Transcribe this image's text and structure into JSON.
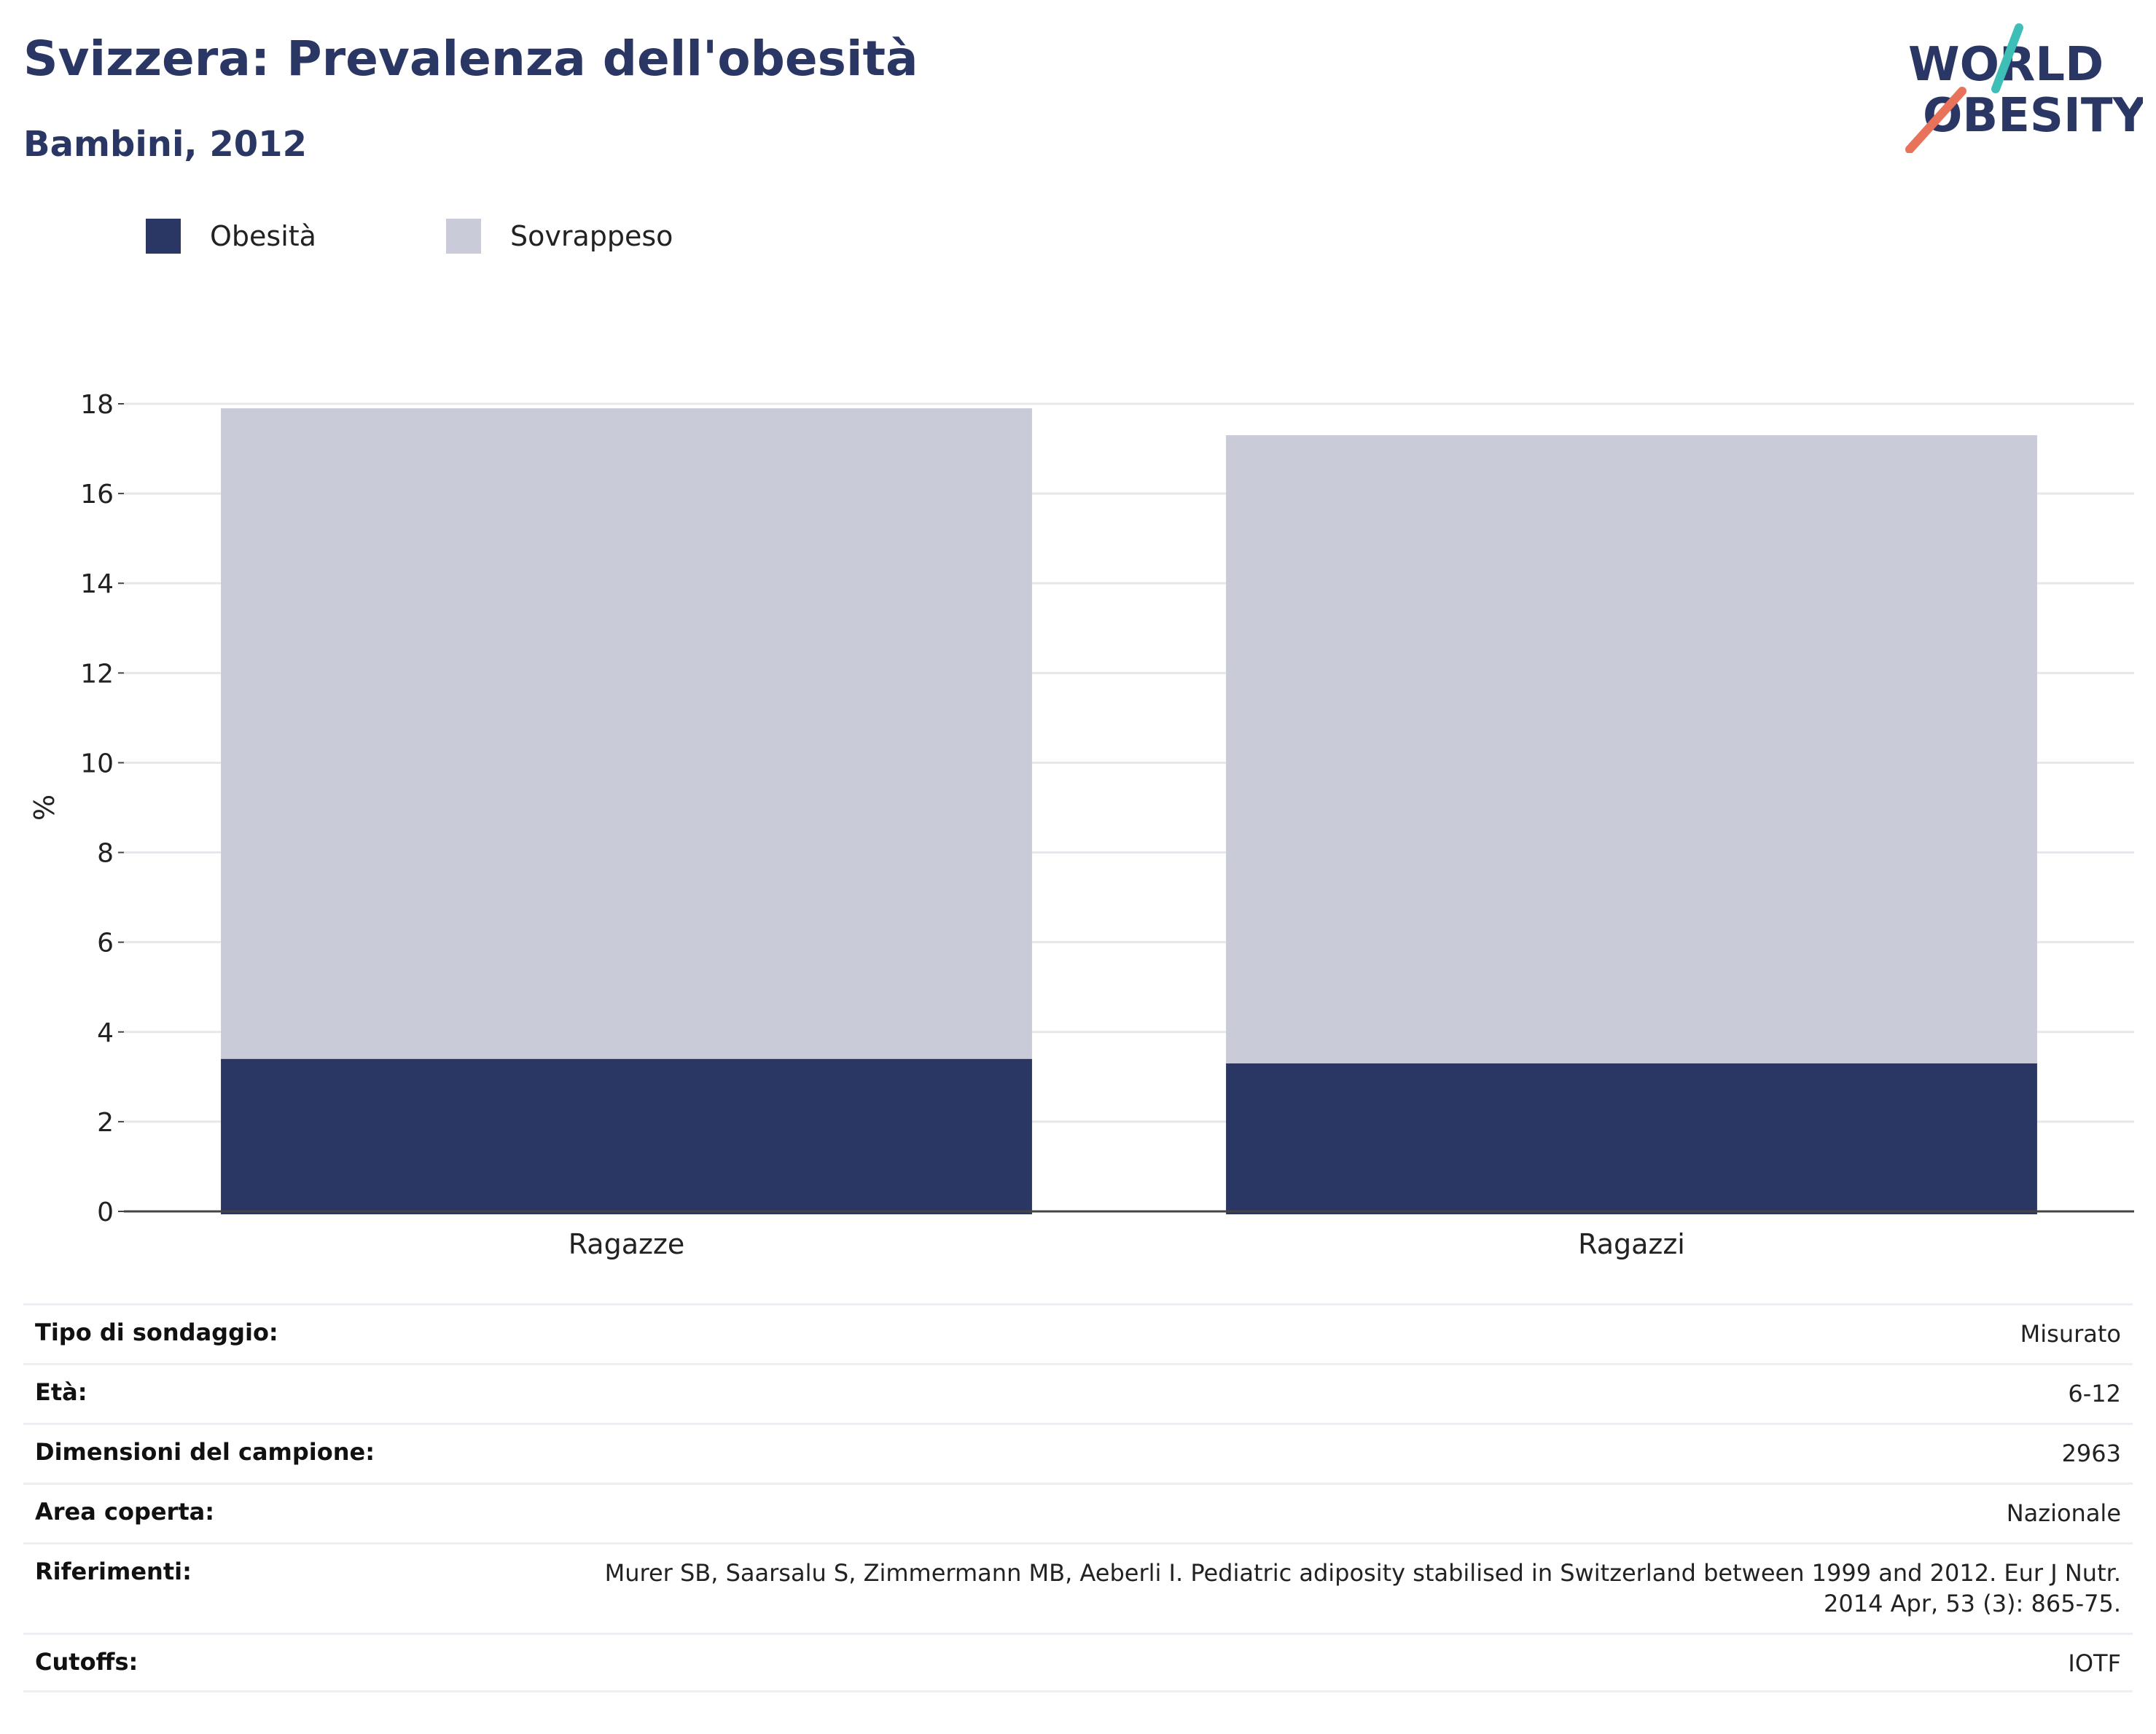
{
  "header": {
    "title": "Svizzera: Prevalenza dell'obesità",
    "subtitle": "Bambini, 2012"
  },
  "logo": {
    "line1": "WORLD",
    "line2": "OBESITY",
    "accent_teal": "#3dbfb8",
    "accent_coral": "#e8735a",
    "text_color": "#2a3663"
  },
  "legend": {
    "items": [
      {
        "label": "Obesità",
        "color": "#2a3663"
      },
      {
        "label": "Sovrappeso",
        "color": "#cacbd8"
      }
    ]
  },
  "chart_data": {
    "type": "bar",
    "stacked": true,
    "categories": [
      "Ragazze",
      "Ragazzi"
    ],
    "series": [
      {
        "name": "Obesità",
        "values": [
          3.4,
          3.3
        ],
        "color": "#2a3663"
      },
      {
        "name": "Sovrappeso",
        "values": [
          14.5,
          14.0
        ],
        "color": "#cacbd8"
      }
    ],
    "ylabel": "%",
    "ylim": [
      0,
      18
    ],
    "yticks": [
      0,
      2,
      4,
      6,
      8,
      10,
      12,
      14,
      16,
      18
    ],
    "grid": true,
    "legend_position": "top-left"
  },
  "info": {
    "rows": [
      {
        "key": "Tipo di sondaggio:",
        "value": "Misurato"
      },
      {
        "key": "Età:",
        "value": "6-12"
      },
      {
        "key": "Dimensioni del campione:",
        "value": "2963"
      },
      {
        "key": "Area coperta:",
        "value": "Nazionale"
      },
      {
        "key": "Riferimenti:",
        "value": "Murer SB, Saarsalu S, Zimmermann MB, Aeberli I. Pediatric adiposity stabilised in Switzerland between 1999 and 2012. Eur J Nutr. 2014 Apr, 53 (3): 865-75."
      },
      {
        "key": "Cutoffs:",
        "value": "IOTF"
      }
    ]
  }
}
